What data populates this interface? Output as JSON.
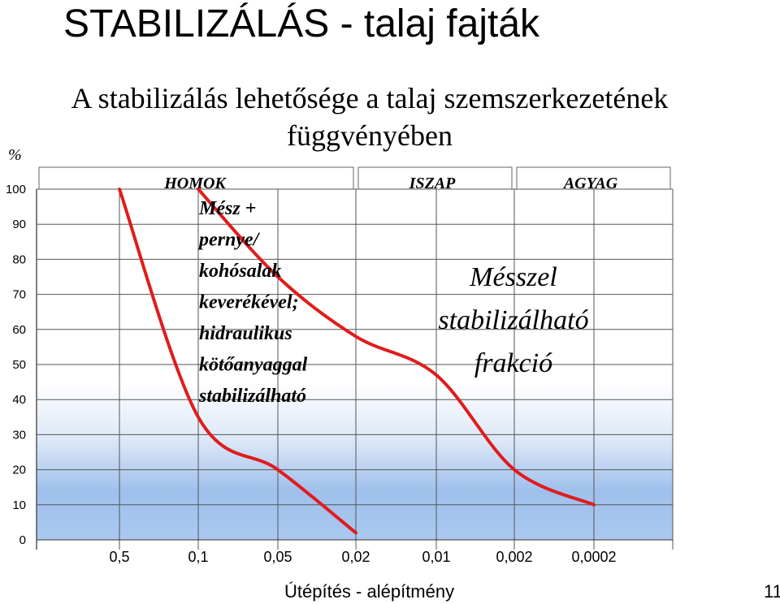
{
  "slide": {
    "title": "STABILIZÁLÁS - talaj fajták",
    "subtitle_line1": "A stabilizálás lehetősége a talaj szemszerkezetének",
    "subtitle_line2": "függvényében",
    "footer": "Útépítés - alépítmény",
    "page_number": "11"
  },
  "chart_data": {
    "type": "line",
    "ylabel": "%",
    "ylim": [
      0,
      100
    ],
    "y_ticks": [
      "0",
      "10",
      "20",
      "30",
      "40",
      "50",
      "60",
      "70",
      "80",
      "90",
      "100"
    ],
    "x_ticks": [
      "0,5",
      "0,1",
      "0,05",
      "0,02",
      "0,01",
      "0,002",
      "0,0002"
    ],
    "grid": true,
    "zones": [
      "HOMOK",
      "ISZAP",
      "AGYAG"
    ],
    "series": [
      {
        "color": "#e01c1c",
        "points": [
          {
            "x": "0,5",
            "y": 100
          },
          {
            "x": "0,1",
            "y": 35
          },
          {
            "x": "0,05",
            "y": 20
          },
          {
            "x": "0,02",
            "y": 2
          }
        ]
      },
      {
        "color": "#e01c1c",
        "points": [
          {
            "x": "0,1",
            "y": 100
          },
          {
            "x": "0,05",
            "y": 75
          },
          {
            "x": "0,02",
            "y": 58
          },
          {
            "x": "0,01",
            "y": 47
          },
          {
            "x": "0,002",
            "y": 20
          },
          {
            "x": "0,0002",
            "y": 10
          }
        ]
      }
    ],
    "annotations": {
      "left_lines": [
        "Mész +",
        "pernye/",
        "kohósalak",
        "keverékével;",
        "hidraulikus",
        "kötőanyaggal",
        "stabilizálható"
      ],
      "right_lines": [
        "Mésszel",
        "stabilizálható",
        "frakció"
      ]
    }
  }
}
